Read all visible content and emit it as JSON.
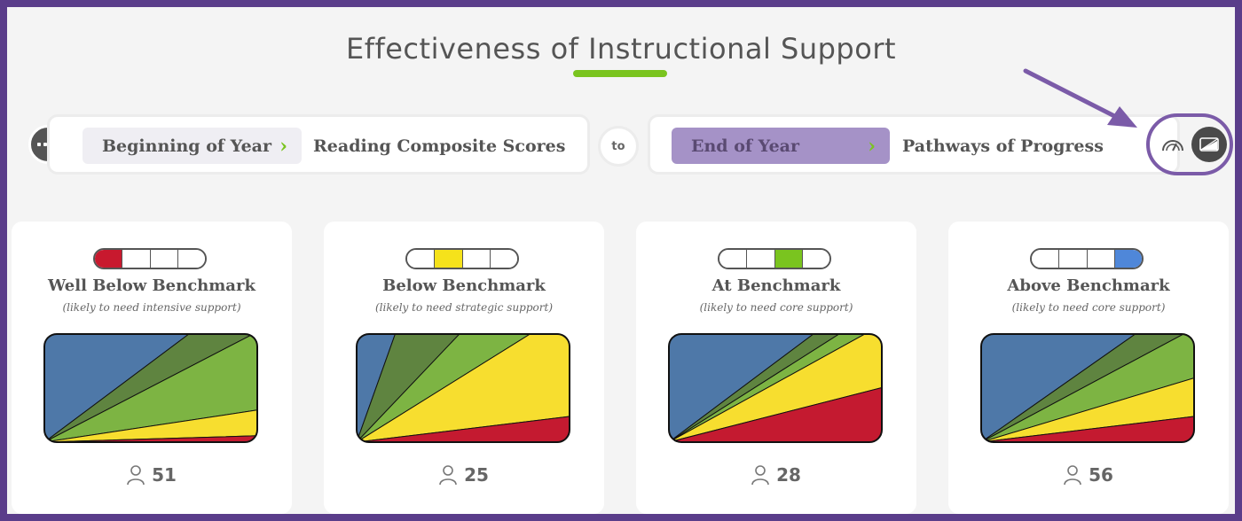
{
  "title": "Effectiveness of Instructional Support",
  "colors": {
    "accent_green": "#7ac41f",
    "frame_purple": "#5a3d8a",
    "well_below": "#c8192e",
    "below": "#f5e21b",
    "at": "#7ac41f",
    "above": "#4f87d9",
    "pathway_blue": "#4e78a8",
    "pathway_dark_green": "#5f8440",
    "pathway_green": "#7db443",
    "pathway_yellow": "#f7de2f",
    "pathway_red": "#c41a30"
  },
  "selector": {
    "menu_icon": "more-dots-icon",
    "from": {
      "period": "Beginning of Year",
      "measure": "Reading Composite Scores"
    },
    "connector": "to",
    "to": {
      "period": "End of Year",
      "measure": "Pathways of Progress"
    },
    "view_icons": [
      "gauge-icon",
      "chart-icon"
    ]
  },
  "cards": [
    {
      "title": "Well Below Benchmark",
      "subtitle": "(likely to need intensive support)",
      "level_index": 0,
      "count": "51",
      "pathways": {
        "blue": 0.45,
        "dark_green": 0.2,
        "green": 0.25,
        "yellow": 0.08,
        "red": 0.02
      }
    },
    {
      "title": "Below Benchmark",
      "subtitle": "(likely to need strategic support)",
      "level_index": 1,
      "count": "25",
      "pathways": {
        "blue": 0.12,
        "dark_green": 0.2,
        "green": 0.22,
        "yellow": 0.38,
        "red": 0.08
      }
    },
    {
      "title": "At Benchmark",
      "subtitle": "(likely to need core support)",
      "level_index": 2,
      "count": "28",
      "pathways": {
        "blue": 0.45,
        "dark_green": 0.08,
        "green": 0.08,
        "yellow": 0.22,
        "red": 0.17
      }
    },
    {
      "title": "Above Benchmark",
      "subtitle": "(likely to need core support)",
      "level_index": 3,
      "count": "56",
      "pathways": {
        "blue": 0.48,
        "dark_green": 0.15,
        "green": 0.17,
        "yellow": 0.12,
        "red": 0.08
      }
    }
  ]
}
